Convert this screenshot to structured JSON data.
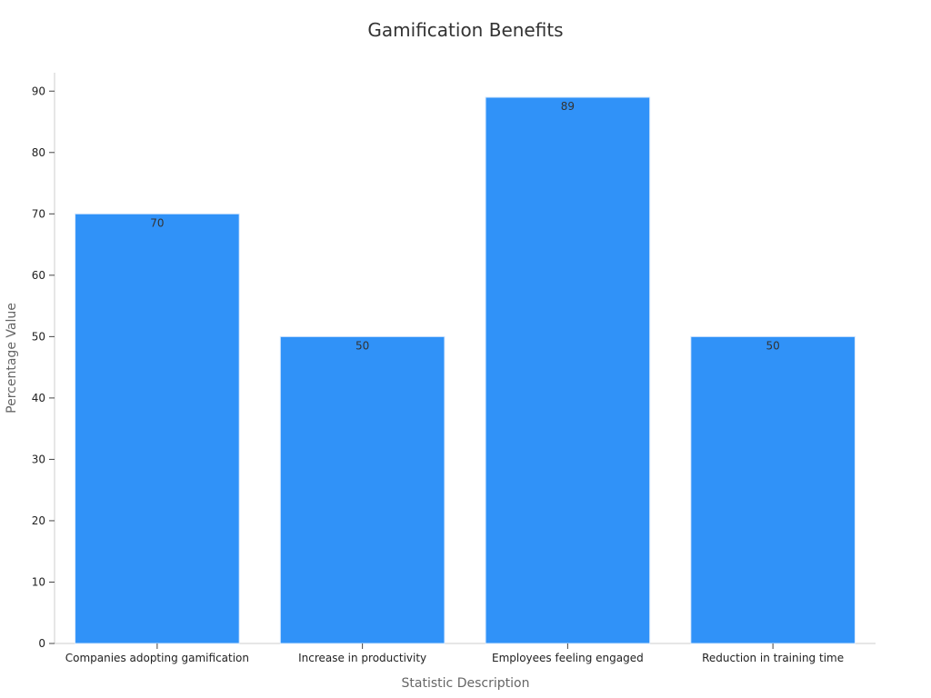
{
  "chart_data": {
    "type": "bar",
    "title": "Gamification Benefits",
    "xlabel": "Statistic Description",
    "ylabel": "Percentage Value",
    "categories": [
      "Companies adopting gamification",
      "Increase in productivity",
      "Employees feeling engaged",
      "Reduction in training time"
    ],
    "values": [
      70,
      50,
      89,
      50
    ],
    "ylim": [
      0,
      93
    ],
    "yticks": [
      0,
      10,
      20,
      30,
      40,
      50,
      60,
      70,
      80,
      90
    ],
    "grid": false,
    "bar_color": "#3092f8",
    "bar_edge_color": "#d6e8fd"
  }
}
